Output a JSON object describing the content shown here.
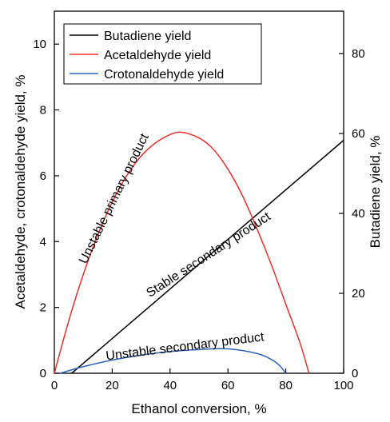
{
  "chart_data": {
    "type": "line",
    "x_axis": {
      "label": "Ethanol conversion, %",
      "range": [
        0,
        100
      ],
      "ticks": [
        0,
        20,
        40,
        60,
        80,
        100
      ]
    },
    "y_axis_left": {
      "label": "Acetaldehyde, crotonaldehyde yield, %",
      "range": [
        0,
        11
      ],
      "ticks": [
        0,
        2,
        4,
        6,
        8,
        10
      ]
    },
    "y_axis_right": {
      "label": "Butadiene yield, %",
      "range": [
        0,
        90.6
      ],
      "ticks": [
        0,
        20,
        40,
        60,
        80
      ]
    },
    "grid": false,
    "legend_position": "top-left",
    "series": [
      {
        "name": "Butadiene yield",
        "axis": "right",
        "color": "#000000",
        "x": [
          6,
          100
        ],
        "y": [
          0,
          58.3
        ]
      },
      {
        "name": "Acetaldehyde yield",
        "axis": "left",
        "color": "#e8312b",
        "x": [
          0,
          5,
          10,
          15,
          20,
          25,
          30,
          35,
          40,
          44,
          50,
          55,
          60,
          65,
          70,
          75,
          80,
          85,
          88
        ],
        "y": [
          0,
          1.6,
          3.0,
          4.2,
          5.2,
          6.0,
          6.6,
          7.0,
          7.25,
          7.32,
          7.15,
          6.8,
          6.2,
          5.4,
          4.4,
          3.3,
          2.1,
          0.9,
          0
        ]
      },
      {
        "name": "Crotonaldehyde yield",
        "axis": "left",
        "color": "#2b63b8",
        "x": [
          2,
          10,
          20,
          30,
          40,
          50,
          60,
          70,
          75,
          78,
          80
        ],
        "y": [
          0,
          0.2,
          0.4,
          0.55,
          0.66,
          0.72,
          0.74,
          0.6,
          0.42,
          0.22,
          0
        ]
      }
    ],
    "annotations": [
      {
        "text": "Unstable primary product",
        "x": 11,
        "y": 3.3,
        "angle": -64
      },
      {
        "text": "Stable secondary product",
        "x": 33,
        "y": 2.3,
        "angle": -33
      },
      {
        "text": "Unstable secondary product",
        "x": 18,
        "y": 0.4,
        "angle": -7
      }
    ]
  }
}
